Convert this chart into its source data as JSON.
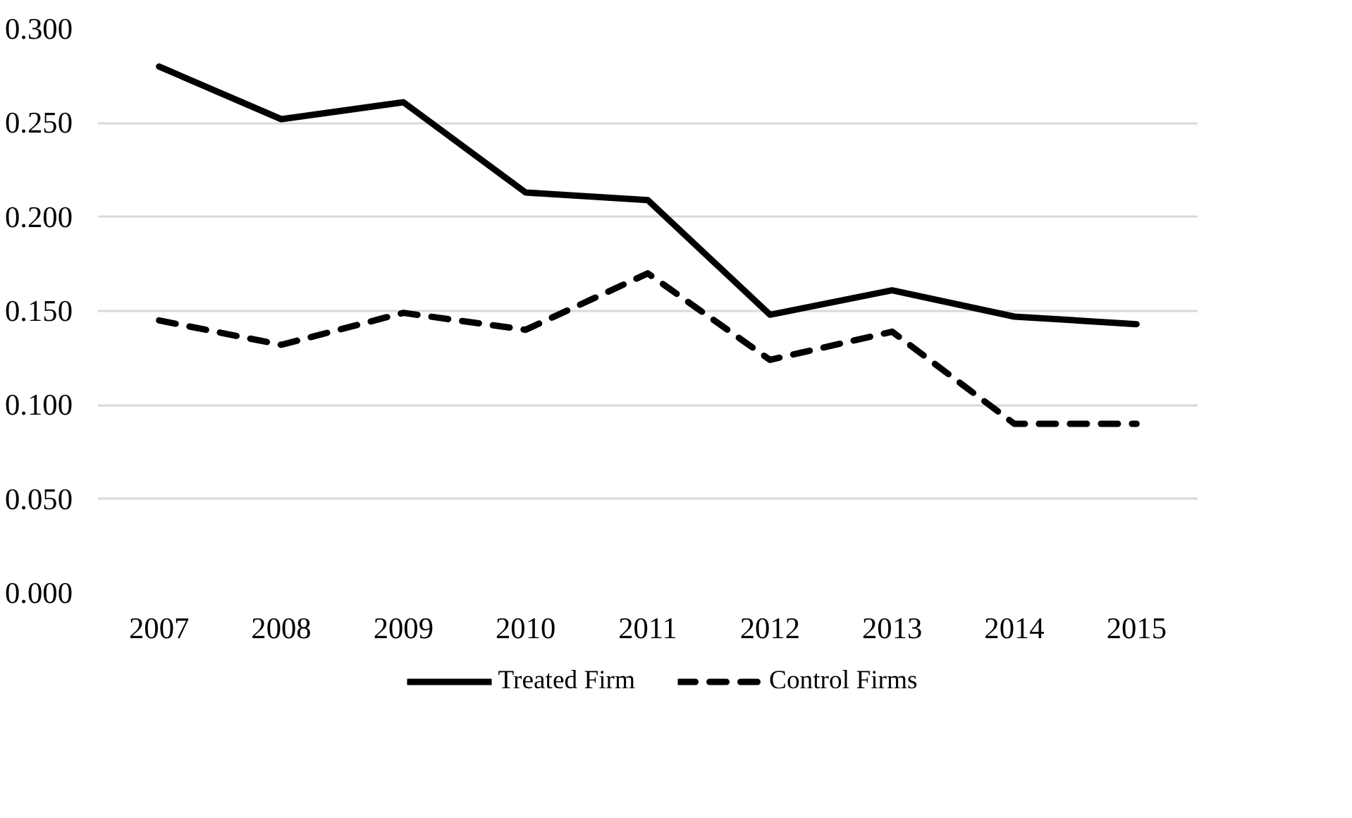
{
  "chart_data": {
    "type": "line",
    "categories": [
      "2007",
      "2008",
      "2009",
      "2010",
      "2011",
      "2012",
      "2013",
      "2014",
      "2015"
    ],
    "series": [
      {
        "name": "Treated Firm",
        "color": "#000000",
        "line_style": "solid",
        "values": [
          0.28,
          0.252,
          0.261,
          0.213,
          0.209,
          0.148,
          0.161,
          0.147,
          0.143
        ]
      },
      {
        "name": "Control Firms",
        "color": "#000000",
        "line_style": "dashed",
        "values": [
          0.145,
          0.132,
          0.149,
          0.14,
          0.17,
          0.124,
          0.139,
          0.09,
          0.09
        ]
      }
    ],
    "ylim": [
      0,
      0.3
    ],
    "yticks": [
      {
        "value": 0,
        "label": "0.000"
      },
      {
        "value": 0.05,
        "label": "0.050"
      },
      {
        "value": 0.1,
        "label": "0.100"
      },
      {
        "value": 0.15,
        "label": "0.150"
      },
      {
        "value": 0.2,
        "label": "0.200"
      },
      {
        "value": 0.25,
        "label": "0.250"
      },
      {
        "value": 0.3,
        "label": "0.300"
      }
    ],
    "grid": "y",
    "legend": "bottom",
    "marker": "none"
  }
}
